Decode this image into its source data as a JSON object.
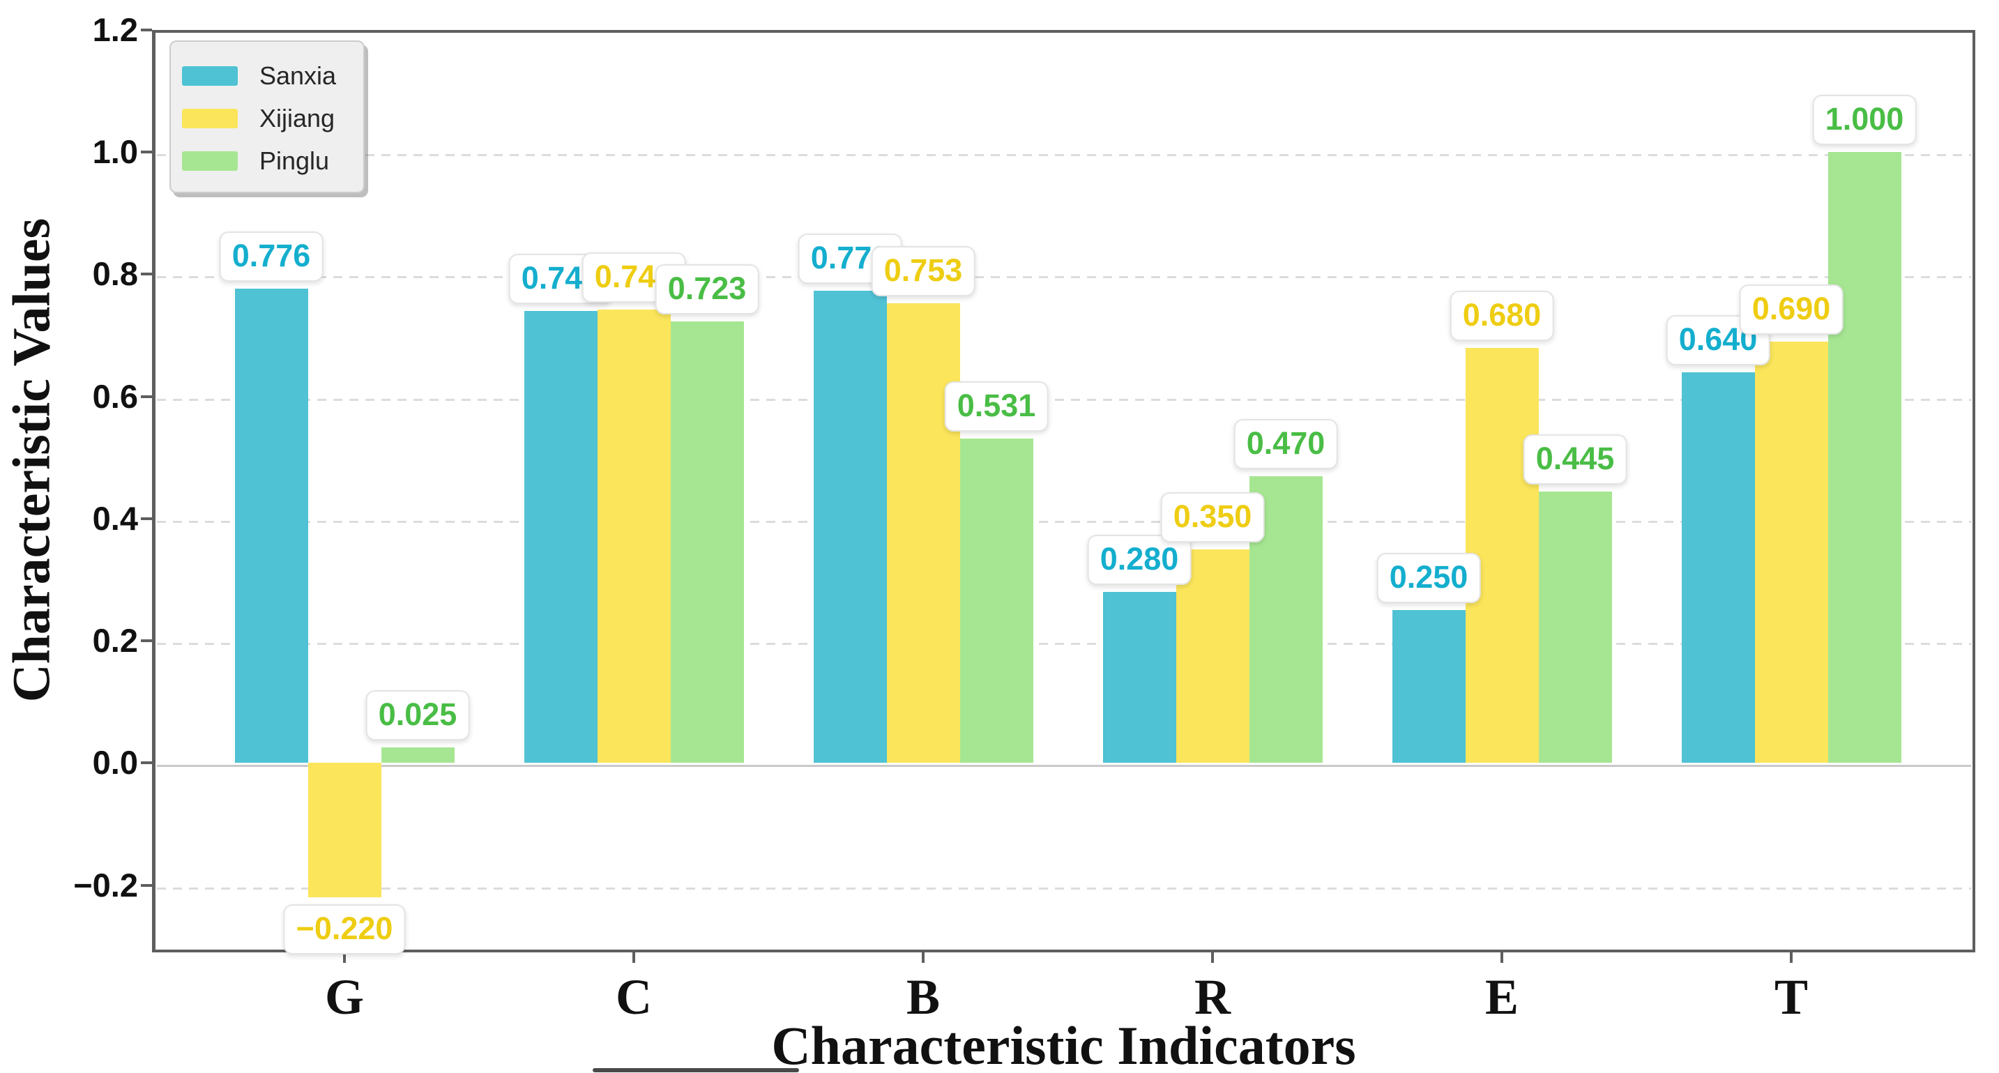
{
  "chart_data": {
    "type": "bar",
    "title": "",
    "xlabel": "Characteristic Indicators",
    "ylabel": "Characteristic Values",
    "categories": [
      "G",
      "C",
      "B",
      "R",
      "E",
      "T"
    ],
    "series": [
      {
        "name": "Sanxia",
        "color": "#4FC2D4",
        "label_color": "#14AECE",
        "values": [
          0.776,
          0.74,
          0.773,
          0.28,
          0.25,
          0.64
        ],
        "value_labels": [
          "0.776",
          "0.740",
          "0.773",
          "0.280",
          "0.250",
          "0.640"
        ]
      },
      {
        "name": "Xijiang",
        "color": "#FBE55B",
        "label_color": "#EECD12",
        "values": [
          -0.22,
          0.742,
          0.753,
          0.35,
          0.68,
          0.69
        ],
        "value_labels": [
          "−0.220",
          "0.742",
          "0.753",
          "0.350",
          "0.680",
          "0.690"
        ]
      },
      {
        "name": "Pinglu",
        "color": "#A6E692",
        "label_color": "#49BD45",
        "values": [
          0.025,
          0.723,
          0.531,
          0.47,
          0.445,
          1.0
        ],
        "value_labels": [
          "0.025",
          "0.723",
          "0.531",
          "0.470",
          "0.445",
          "1.000"
        ]
      }
    ],
    "ylim": [
      -0.31,
      1.2
    ],
    "yticks": [
      1.2,
      1.0,
      0.8,
      0.6,
      0.4,
      0.2,
      0.0,
      -0.2
    ],
    "ytick_labels": [
      "1.2",
      "1.0",
      "0.8",
      "0.6",
      "0.4",
      "0.2",
      "0.0",
      "−0.2"
    ],
    "grid": {
      "axis": "y",
      "style": "dashed",
      "color": "#dcdcdc",
      "zero_line_color": "#c9c9c9"
    },
    "legend": {
      "position": "upper left",
      "items": [
        "Sanxia",
        "Xijiang",
        "Pinglu"
      ]
    }
  },
  "colors": {
    "spine": "#5e5e5e",
    "text": "#111111",
    "legend_background": "#efefef",
    "legend_border": "#cccccc"
  }
}
